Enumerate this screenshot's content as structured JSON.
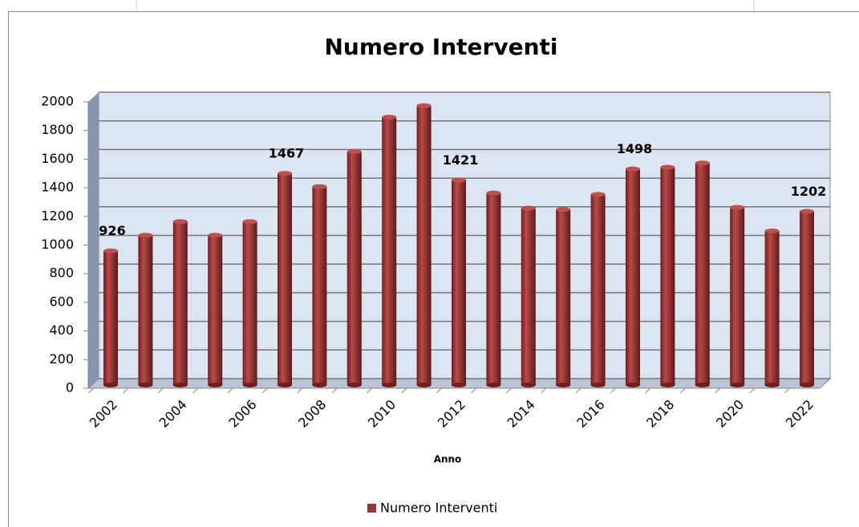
{
  "chart_data": {
    "type": "bar",
    "title": "Numero Interventi",
    "x_label": "Anno",
    "categories": [
      "2002",
      null,
      "2004",
      null,
      "2006",
      null,
      "2008",
      null,
      "2010",
      null,
      "2012",
      null,
      "2014",
      null,
      "2016",
      null,
      "2018",
      null,
      "2020",
      null,
      "2022"
    ],
    "series": [
      {
        "name": "Numero Interventi",
        "color": "#953735",
        "values": [
          926,
          1035,
          1130,
          1035,
          1130,
          1467,
          1375,
          1620,
          1860,
          1940,
          1421,
          1330,
          1225,
          1215,
          1320,
          1498,
          1510,
          1540,
          1230,
          1065,
          1202
        ],
        "value_labels": [
          "926",
          null,
          null,
          null,
          null,
          "1467",
          null,
          null,
          null,
          null,
          "1421",
          null,
          null,
          null,
          null,
          "1498",
          null,
          null,
          null,
          null,
          "1202"
        ]
      }
    ],
    "ylim": [
      0,
      2000
    ],
    "yticks": [
      0,
      200,
      400,
      600,
      800,
      1000,
      1200,
      1400,
      1600,
      1800,
      2000
    ],
    "grid": true,
    "legend": "bottom"
  }
}
